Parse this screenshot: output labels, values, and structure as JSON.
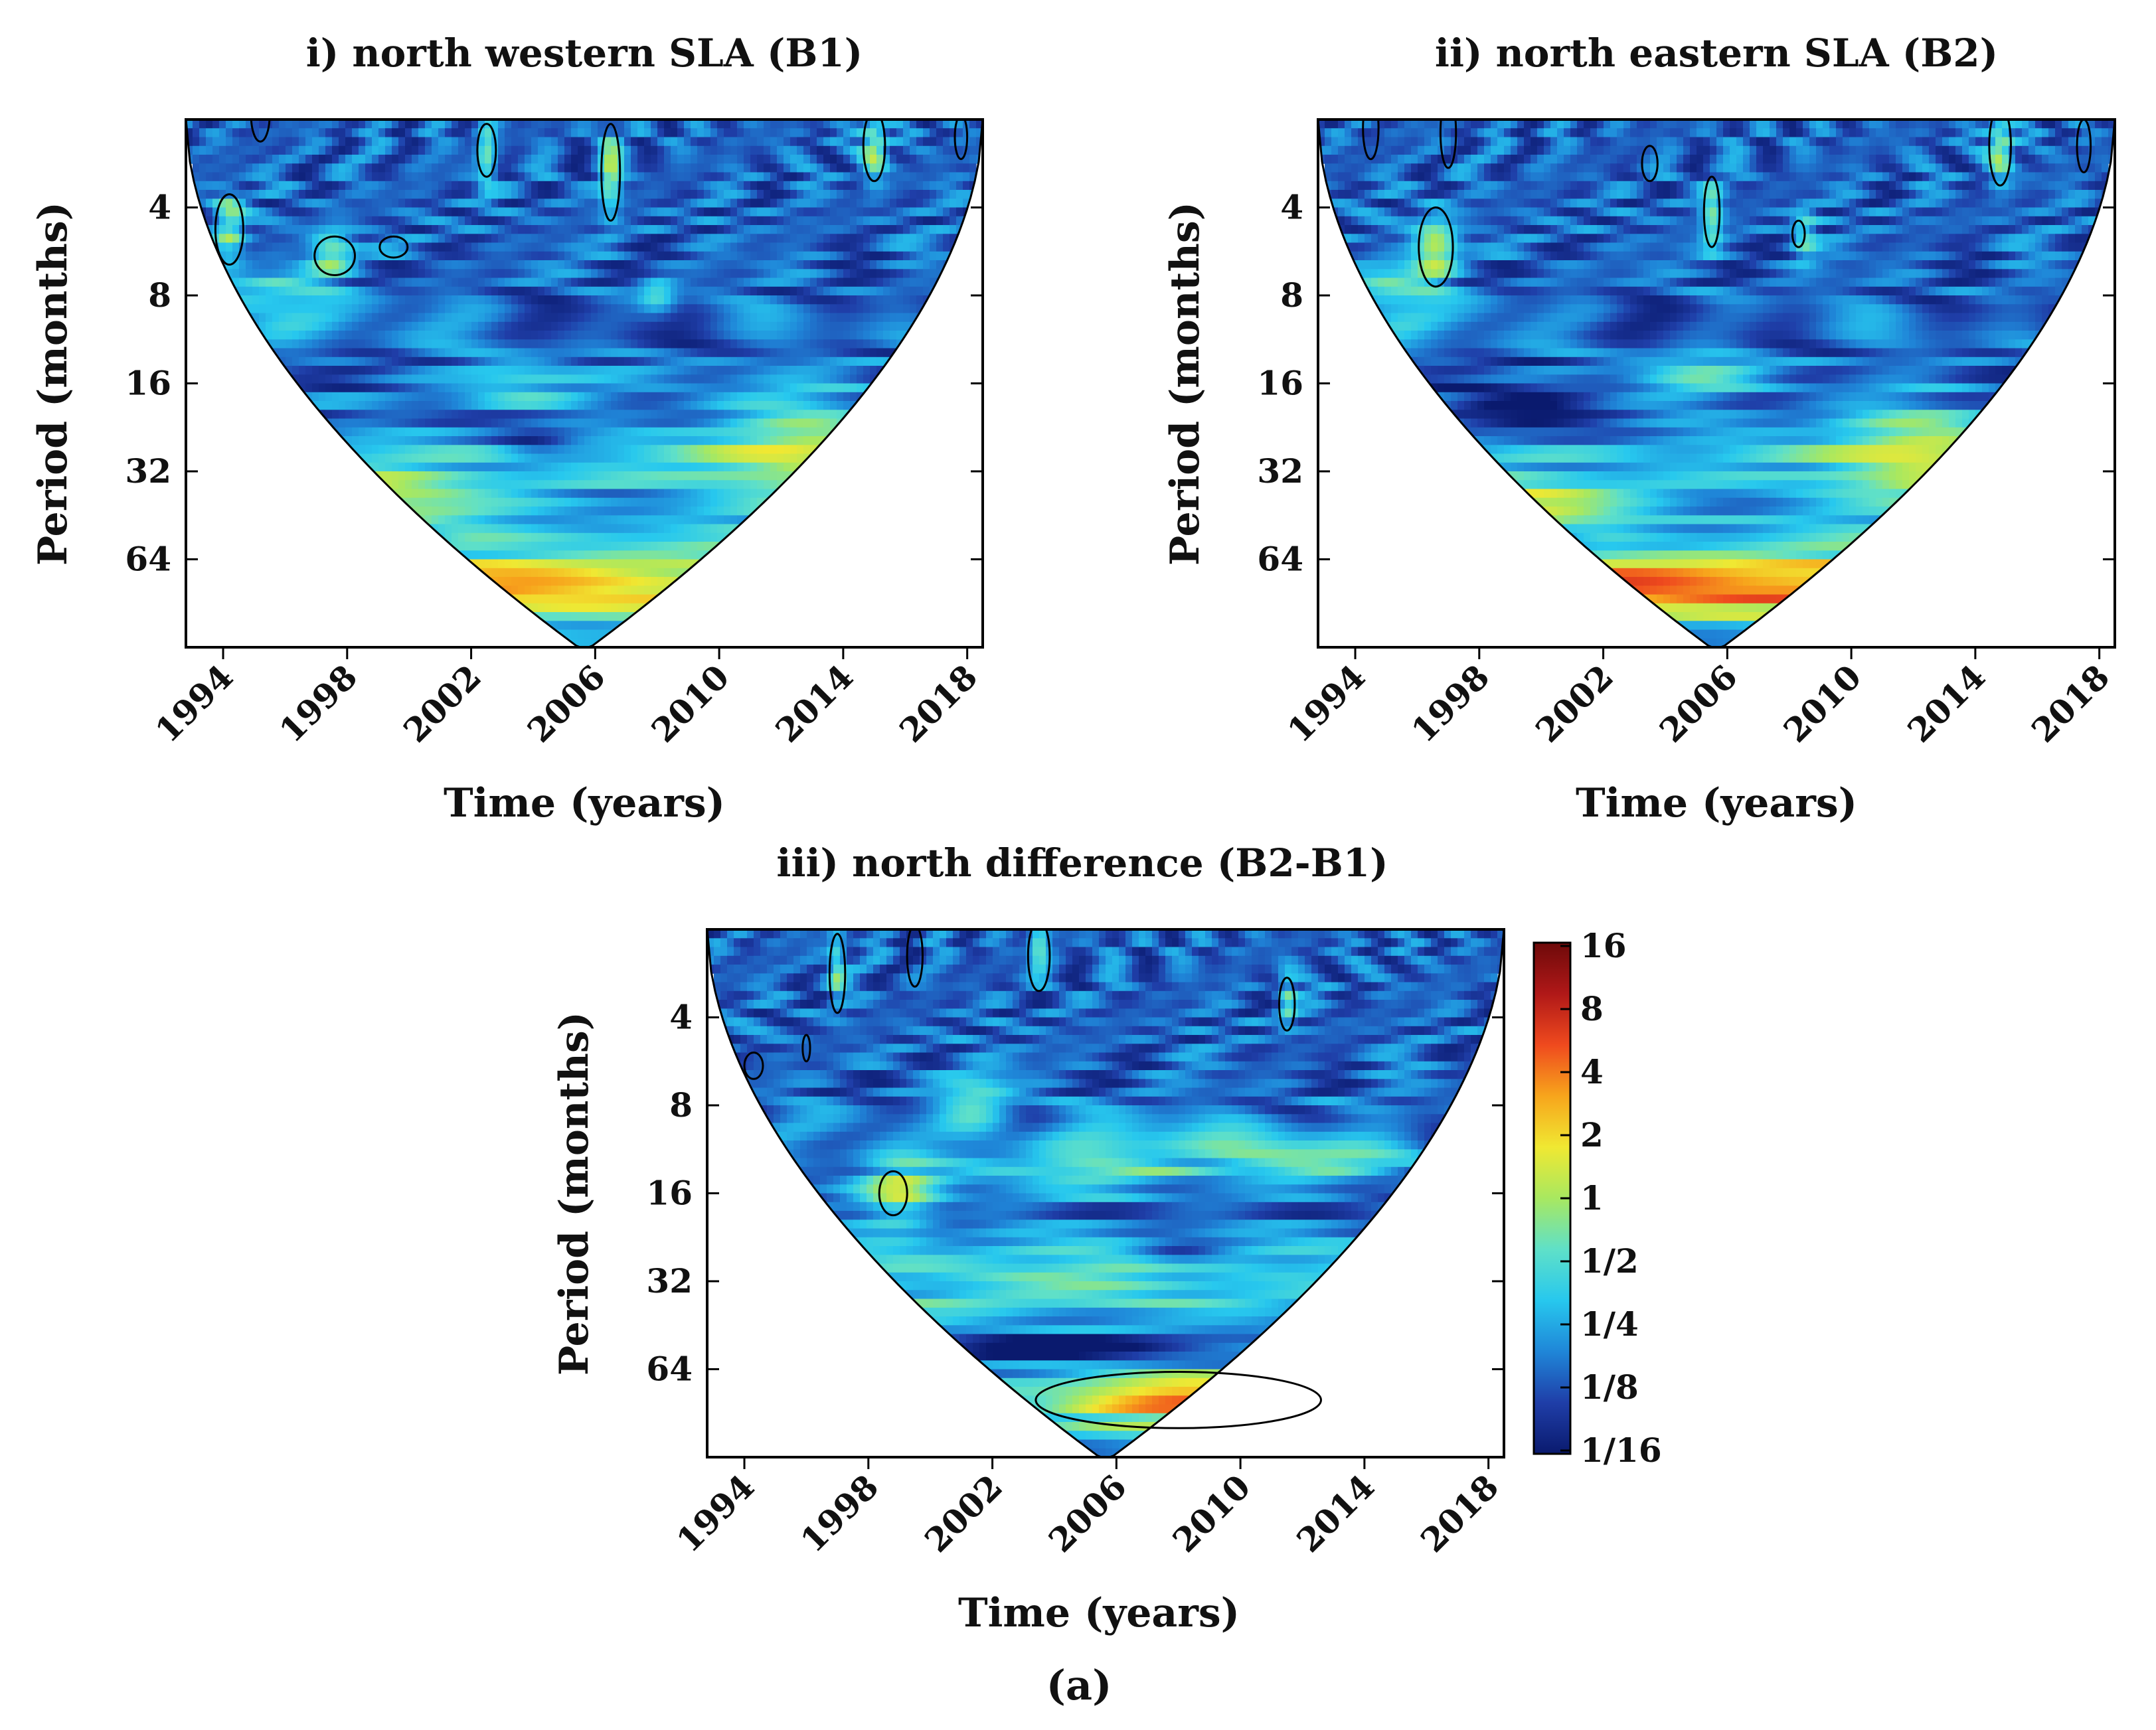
{
  "figure_caption": "(a)",
  "colors": {
    "scale": [
      "#0a1a6e",
      "#1f3ea8",
      "#1f86d8",
      "#27c8ee",
      "#5fe0c8",
      "#a8e860",
      "#f0e832",
      "#f7a51c",
      "#ef4a1e",
      "#b01818",
      "#6e0a0a"
    ],
    "cone": "#000000",
    "significance_contour": "#000000"
  },
  "colorbar": {
    "labels": [
      "16",
      "8",
      "4",
      "2",
      "1",
      "1/2",
      "1/4",
      "1/8",
      "1/16"
    ]
  },
  "chart_data": [
    {
      "type": "heatmap",
      "id": "b1",
      "title": "i) north western SLA (B1)",
      "xlabel": "Time (years)",
      "ylabel": "Period (months)",
      "x_ticks": [
        "1994",
        "1998",
        "2002",
        "2006",
        "2010",
        "2014",
        "2018"
      ],
      "y_ticks": [
        "4",
        "8",
        "16",
        "32",
        "64"
      ],
      "xlim": [
        1992.8,
        2018.5
      ],
      "ylim_log2": [
        1,
        7
      ],
      "cone_of_influence": true,
      "features": [
        {
          "t": 2005.5,
          "log2p": 6.3,
          "amp": 3.6,
          "st": 11,
          "sp": 0.35
        },
        {
          "t": 1998.5,
          "log2p": 5.35,
          "amp": 2.6,
          "st": 4,
          "sp": 0.35
        },
        {
          "t": 2012.5,
          "log2p": 4.7,
          "amp": 2.3,
          "st": 3,
          "sp": 0.6
        },
        {
          "t": 1995.5,
          "log2p": 3.1,
          "amp": 2.2,
          "st": 2,
          "sp": 0.35
        },
        {
          "t": 1997.5,
          "log2p": 2.5,
          "amp": 2.6,
          "st": 0.7,
          "sp": 0.25
        },
        {
          "t": 1994.2,
          "log2p": 2.2,
          "amp": 2.4,
          "st": 0.5,
          "sp": 0.4
        },
        {
          "t": 2003.5,
          "log2p": 4.0,
          "amp": 1.5,
          "st": 2,
          "sp": 0.3
        },
        {
          "t": 2015.0,
          "log2p": 1.3,
          "amp": 2.7,
          "st": 0.4,
          "sp": 0.4
        },
        {
          "t": 2006.5,
          "log2p": 1.6,
          "amp": 2.3,
          "st": 0.35,
          "sp": 0.5
        },
        {
          "t": 2008.0,
          "log2p": 3.0,
          "amp": 1.8,
          "st": 0.6,
          "sp": 0.2
        },
        {
          "t": 2002.5,
          "log2p": 1.4,
          "amp": 2.2,
          "st": 0.3,
          "sp": 0.4
        },
        {
          "t": 2000.0,
          "log2p": 5.75,
          "amp": -1.4,
          "st": 1.2,
          "sp": 0.15
        },
        {
          "t": 2004.0,
          "log2p": 4.7,
          "amp": -1.2,
          "st": 1.2,
          "sp": 0.15
        }
      ],
      "contours": [
        {
          "t": 1994.2,
          "log2p": 2.25,
          "rt": 0.45,
          "rp": 0.4
        },
        {
          "t": 1995.2,
          "log2p": 0.95,
          "rt": 0.3,
          "rp": 0.3
        },
        {
          "t": 1997.6,
          "log2p": 2.55,
          "rt": 0.65,
          "rp": 0.22
        },
        {
          "t": 1999.5,
          "log2p": 2.45,
          "rt": 0.45,
          "rp": 0.12
        },
        {
          "t": 2006.5,
          "log2p": 1.6,
          "rt": 0.3,
          "rp": 0.55
        },
        {
          "t": 2015.0,
          "log2p": 1.3,
          "rt": 0.35,
          "rp": 0.4
        },
        {
          "t": 2002.5,
          "log2p": 1.35,
          "rt": 0.3,
          "rp": 0.3
        },
        {
          "t": 2017.8,
          "log2p": 1.2,
          "rt": 0.2,
          "rp": 0.25
        }
      ]
    },
    {
      "type": "heatmap",
      "id": "b2",
      "title": "ii) north eastern SLA (B2)",
      "xlabel": "Time (years)",
      "ylabel": "Period (months)",
      "x_ticks": [
        "1994",
        "1998",
        "2002",
        "2006",
        "2010",
        "2014",
        "2018"
      ],
      "y_ticks": [
        "4",
        "8",
        "16",
        "32",
        "64"
      ],
      "xlim": [
        1992.8,
        2018.5
      ],
      "ylim_log2": [
        1,
        7
      ],
      "cone_of_influence": true,
      "features": [
        {
          "t": 2006.0,
          "log2p": 6.3,
          "amp": 4.3,
          "st": 11,
          "sp": 0.35
        },
        {
          "t": 1999.0,
          "log2p": 5.4,
          "amp": 2.6,
          "st": 4,
          "sp": 0.35
        },
        {
          "t": 2012.0,
          "log2p": 4.8,
          "amp": 2.4,
          "st": 3,
          "sp": 0.6
        },
        {
          "t": 1996.6,
          "log2p": 2.45,
          "amp": 3.0,
          "st": 0.7,
          "sp": 0.35
        },
        {
          "t": 1995.0,
          "log2p": 3.0,
          "amp": 2.0,
          "st": 1.6,
          "sp": 0.4
        },
        {
          "t": 2005.0,
          "log2p": 3.9,
          "amp": 1.5,
          "st": 2,
          "sp": 0.3
        },
        {
          "t": 2014.8,
          "log2p": 1.3,
          "amp": 2.7,
          "st": 0.4,
          "sp": 0.4
        },
        {
          "t": 2005.5,
          "log2p": 2.1,
          "amp": 2.2,
          "st": 0.35,
          "sp": 0.4
        },
        {
          "t": 2008.5,
          "log2p": 2.3,
          "amp": 1.8,
          "st": 0.4,
          "sp": 0.3
        },
        {
          "t": 2000.5,
          "log2p": 5.75,
          "amp": -1.4,
          "st": 1.2,
          "sp": 0.15
        },
        {
          "t": 1999.0,
          "log2p": 4.3,
          "amp": -1.5,
          "st": 2.5,
          "sp": 0.35
        }
      ],
      "contours": [
        {
          "t": 1996.6,
          "log2p": 2.45,
          "rt": 0.55,
          "rp": 0.45
        },
        {
          "t": 1997.0,
          "log2p": 1.15,
          "rt": 0.25,
          "rp": 0.4
        },
        {
          "t": 1994.5,
          "log2p": 1.1,
          "rt": 0.25,
          "rp": 0.35
        },
        {
          "t": 2005.5,
          "log2p": 2.05,
          "rt": 0.25,
          "rp": 0.4
        },
        {
          "t": 2008.3,
          "log2p": 2.3,
          "rt": 0.2,
          "rp": 0.15
        },
        {
          "t": 2014.8,
          "log2p": 1.3,
          "rt": 0.35,
          "rp": 0.45
        },
        {
          "t": 2017.5,
          "log2p": 1.3,
          "rt": 0.22,
          "rp": 0.3
        },
        {
          "t": 2003.5,
          "log2p": 1.5,
          "rt": 0.25,
          "rp": 0.2
        }
      ]
    },
    {
      "type": "heatmap",
      "id": "diff",
      "title": "iii) north difference (B2-B1)",
      "xlabel": "Time (years)",
      "ylabel": "Period (months)",
      "x_ticks": [
        "1994",
        "1998",
        "2002",
        "2006",
        "2010",
        "2014",
        "2018"
      ],
      "y_ticks": [
        "4",
        "8",
        "16",
        "32",
        "64"
      ],
      "xlim": [
        1992.8,
        2018.5
      ],
      "ylim_log2": [
        1,
        7
      ],
      "cone_of_influence": true,
      "features": [
        {
          "t": 2008.0,
          "log2p": 6.35,
          "amp": 3.6,
          "st": 4,
          "sp": 0.3
        },
        {
          "t": 2004.5,
          "log2p": 5.0,
          "amp": 1.3,
          "st": 8,
          "sp": 0.35
        },
        {
          "t": 1999.0,
          "log2p": 4.0,
          "amp": 2.4,
          "st": 1.2,
          "sp": 0.4
        },
        {
          "t": 2006.0,
          "log2p": 3.6,
          "amp": 2.0,
          "st": 5,
          "sp": 0.4
        },
        {
          "t": 2013.0,
          "log2p": 3.6,
          "amp": 2.0,
          "st": 2.5,
          "sp": 0.35
        },
        {
          "t": 2001.5,
          "log2p": 3.0,
          "amp": 2.0,
          "st": 1.2,
          "sp": 0.4
        },
        {
          "t": 2005.0,
          "log2p": 5.75,
          "amp": -2.0,
          "st": 6,
          "sp": 0.2
        },
        {
          "t": 2008.0,
          "log2p": 4.7,
          "amp": -1.5,
          "st": 1.5,
          "sp": 0.15
        },
        {
          "t": 1997.0,
          "log2p": 1.4,
          "amp": 2.0,
          "st": 0.3,
          "sp": 0.4
        },
        {
          "t": 2003.5,
          "log2p": 1.2,
          "amp": 2.0,
          "st": 0.3,
          "sp": 0.3
        },
        {
          "t": 2011.5,
          "log2p": 1.8,
          "amp": 1.8,
          "st": 0.3,
          "sp": 0.3
        }
      ],
      "contours": [
        {
          "t": 2008.0,
          "log2p": 6.35,
          "rt": 4.6,
          "rp": 0.32
        },
        {
          "t": 1998.8,
          "log2p": 4.0,
          "rt": 0.45,
          "rp": 0.25
        },
        {
          "t": 1994.3,
          "log2p": 2.55,
          "rt": 0.3,
          "rp": 0.15
        },
        {
          "t": 1996.0,
          "log2p": 2.35,
          "rt": 0.12,
          "rp": 0.15
        },
        {
          "t": 1997.0,
          "log2p": 1.5,
          "rt": 0.25,
          "rp": 0.45
        },
        {
          "t": 2003.5,
          "log2p": 1.3,
          "rt": 0.35,
          "rp": 0.4
        },
        {
          "t": 2011.5,
          "log2p": 1.85,
          "rt": 0.25,
          "rp": 0.3
        },
        {
          "t": 1999.5,
          "log2p": 1.3,
          "rt": 0.25,
          "rp": 0.35
        }
      ]
    }
  ]
}
